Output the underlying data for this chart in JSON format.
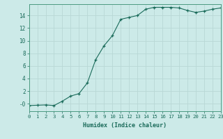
{
  "title": "",
  "xlabel": "Humidex (Indice chaleur)",
  "bg_color": "#cceae8",
  "grid_color": "#b8d8d5",
  "line_color": "#1a6b5a",
  "marker_color": "#1a6b5a",
  "x_values": [
    0,
    1,
    2,
    3,
    4,
    5,
    6,
    7,
    8,
    9,
    10,
    11,
    12,
    13,
    14,
    15,
    16,
    17,
    18,
    19,
    20,
    21,
    22,
    23
  ],
  "y_values": [
    -0.3,
    -0.25,
    -0.2,
    -0.3,
    0.4,
    1.2,
    1.6,
    3.3,
    7.0,
    9.2,
    10.8,
    13.4,
    13.7,
    14.0,
    15.0,
    15.3,
    15.3,
    15.3,
    15.2,
    14.8,
    14.5,
    14.7,
    15.0,
    15.2
  ],
  "xlim": [
    0,
    23
  ],
  "ylim": [
    -1.2,
    15.8
  ],
  "yticks": [
    0,
    2,
    4,
    6,
    8,
    10,
    12,
    14
  ],
  "ytick_labels": [
    "-0",
    "2",
    "4",
    "6",
    "8",
    "10",
    "12",
    "14"
  ],
  "xticks": [
    0,
    1,
    2,
    3,
    4,
    5,
    6,
    7,
    8,
    9,
    10,
    11,
    12,
    13,
    14,
    15,
    16,
    17,
    18,
    19,
    20,
    21,
    22,
    23
  ],
  "spine_color": "#4a9a80",
  "tick_color": "#1a6b5a",
  "label_color": "#1a6b5a",
  "xlabel_fontsize": 6.0,
  "tick_fontsize": 5.2
}
